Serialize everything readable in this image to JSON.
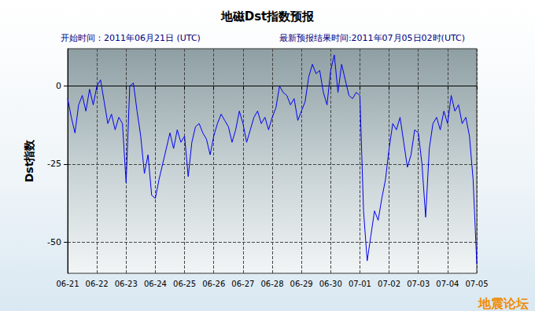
{
  "chart_data": {
    "type": "line",
    "title": "地磁Dst指数预报",
    "subtitle": [
      "开始时间：2011年06月21日 (UTC)",
      "最新预报结果时间:2011年07月05日02时(UTC)"
    ],
    "y_label": "Dst指数",
    "annotations": [
      "地震论坛"
    ],
    "color": "#0000ee",
    "grid": true,
    "ylim": [
      -60,
      12
    ],
    "yticks": [
      -50,
      -25,
      0
    ],
    "categories": [
      "06-21",
      null,
      null,
      null,
      null,
      null,
      null,
      null,
      "06-22",
      null,
      null,
      null,
      null,
      null,
      null,
      null,
      "06-23",
      null,
      null,
      null,
      null,
      null,
      null,
      null,
      "06-24",
      null,
      null,
      null,
      null,
      null,
      null,
      null,
      "06-25",
      null,
      null,
      null,
      null,
      null,
      null,
      null,
      "06-26",
      null,
      null,
      null,
      null,
      null,
      null,
      null,
      "06-27",
      null,
      null,
      null,
      null,
      null,
      null,
      null,
      "06-28",
      null,
      null,
      null,
      null,
      null,
      null,
      null,
      "06-29",
      null,
      null,
      null,
      null,
      null,
      null,
      null,
      "06-30",
      null,
      null,
      null,
      null,
      null,
      null,
      null,
      "07-01",
      null,
      null,
      null,
      null,
      null,
      null,
      null,
      "07-02",
      null,
      null,
      null,
      null,
      null,
      null,
      null,
      "07-03",
      null,
      null,
      null,
      null,
      null,
      null,
      null,
      "07-04",
      null,
      null,
      null,
      null,
      null,
      null,
      null,
      "07-05"
    ],
    "values": [
      -4,
      -10,
      -15,
      -6,
      -3,
      -8,
      -1,
      -6,
      0,
      2,
      -5,
      -12,
      -9,
      -14,
      -10,
      -12,
      -31,
      0,
      1,
      -8,
      -16,
      -28,
      -22,
      -35,
      -36,
      -30,
      -25,
      -20,
      -15,
      -20,
      -14,
      -18,
      -16,
      -29,
      -18,
      -13,
      -12,
      -15,
      -17,
      -22,
      -16,
      -12,
      -9,
      -11,
      -13,
      -18,
      -14,
      -8,
      -12,
      -18,
      -14,
      -10,
      -8,
      -12,
      -10,
      -14,
      -10,
      -7,
      0,
      -2,
      -3,
      -6,
      -4,
      -11,
      -8,
      -5,
      3,
      7,
      4,
      5,
      -2,
      -6,
      5,
      10,
      -2,
      7,
      2,
      -3,
      -4,
      -2,
      -3,
      -40,
      -56,
      -48,
      -40,
      -43,
      -36,
      -30,
      -20,
      -12,
      -14,
      -10,
      -18,
      -26,
      -22,
      -14,
      -15,
      -25,
      -42,
      -20,
      -12,
      -10,
      -14,
      -8,
      -12,
      -3,
      -8,
      -6,
      -12,
      -10,
      -16,
      -30,
      -57
    ]
  }
}
